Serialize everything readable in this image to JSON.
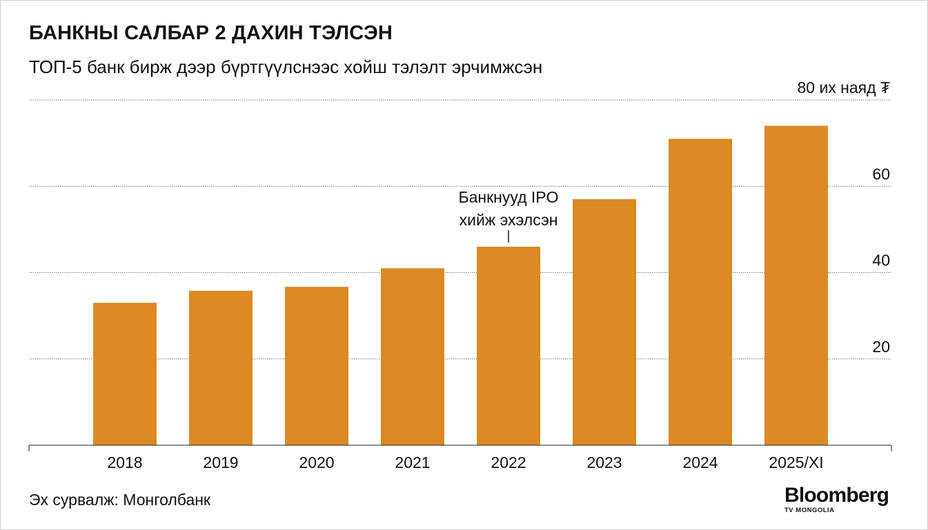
{
  "title": "БАНКНЫ САЛБАР 2 ДАХИН ТЭЛСЭН",
  "subtitle": "ТОП-5 банк бирж дээр бүртгүүлснээс хойш тэлэлт эрчимжсэн",
  "source": "Эх сурвалж: Монголбанк",
  "logo": {
    "main": "Bloomberg",
    "sub": "TV MONGOLIA"
  },
  "colors": {
    "bar": "#DB8A23",
    "grid": "#777777",
    "axis": "#222222"
  },
  "chart_data": {
    "type": "bar",
    "categories": [
      "2018",
      "2019",
      "2020",
      "2021",
      "2022",
      "2023",
      "2024",
      "2025/XI"
    ],
    "values": [
      33,
      35.8,
      36.7,
      41,
      46,
      57,
      71,
      74
    ],
    "unit_label": "80 их наяд ₮",
    "yticks": [
      20,
      40,
      60,
      80
    ],
    "ylim": [
      0,
      80
    ],
    "grid": true,
    "y_axis_side": "right",
    "annotation": {
      "category": "2022",
      "lines": [
        "Банкнууд IPO",
        "хийж эхэлсэн"
      ]
    }
  }
}
